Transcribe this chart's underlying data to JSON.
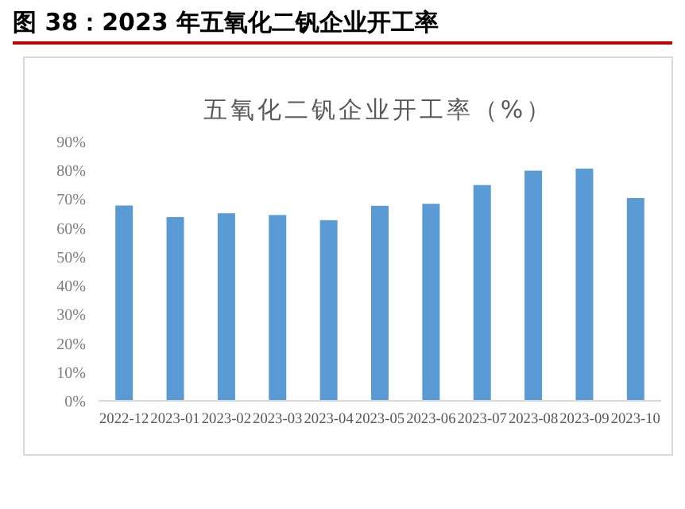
{
  "chart_data": {
    "type": "bar",
    "title": "图 38：2023 年五氧化二钒企业开工率",
    "subtitle": "五氧化二钒企业开工率（%）",
    "categories": [
      "2022-12",
      "2023-01",
      "2023-02",
      "2023-03",
      "2023-04",
      "2023-05",
      "2023-06",
      "2023-07",
      "2023-08",
      "2023-09",
      "2023-10"
    ],
    "values": [
      67.8,
      63.8,
      65.1,
      64.5,
      62.7,
      67.7,
      68.4,
      74.9,
      79.9,
      80.6,
      70.4
    ],
    "color": "#5b9bd5",
    "ylim": [
      0,
      90
    ],
    "yticks": [
      {
        "value": 0,
        "label": "0%"
      },
      {
        "value": 10,
        "label": "10%"
      },
      {
        "value": 20,
        "label": "20%"
      },
      {
        "value": 30,
        "label": "30%"
      },
      {
        "value": 40,
        "label": "40%"
      },
      {
        "value": 50,
        "label": "50%"
      },
      {
        "value": 60,
        "label": "60%"
      },
      {
        "value": 70,
        "label": "70%"
      },
      {
        "value": 80,
        "label": "80%"
      },
      {
        "value": 90,
        "label": "90%"
      }
    ],
    "grid": false
  }
}
